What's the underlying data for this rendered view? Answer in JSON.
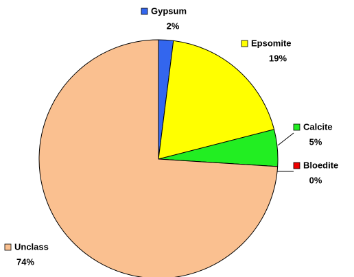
{
  "chart_data": {
    "type": "pie",
    "categories": [
      "Gypsum",
      "Epsomite",
      "Calcite",
      "Bloedite",
      "Unclass"
    ],
    "values": [
      2,
      19,
      5,
      0,
      74
    ],
    "value_labels": [
      "2%",
      "19%",
      "5%",
      "0%",
      "74%"
    ],
    "colors": [
      "#3366ee",
      "#ffff00",
      "#22ee22",
      "#ee0000",
      "#fac090"
    ]
  }
}
